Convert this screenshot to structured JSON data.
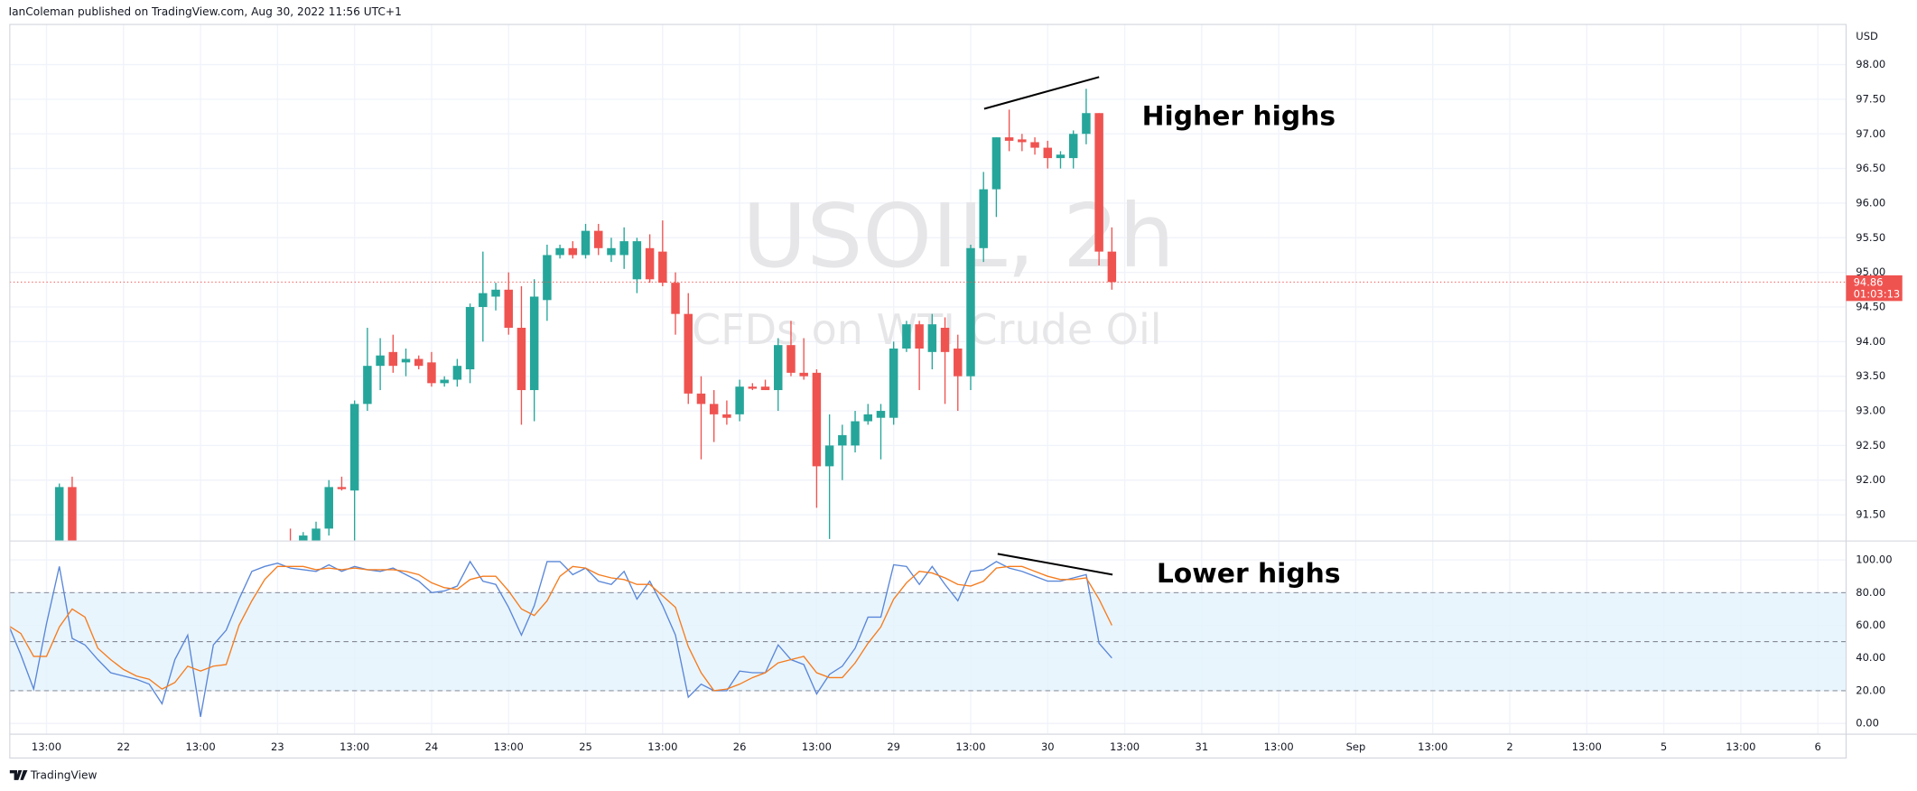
{
  "header": "IanColeman published on TradingView.com, Aug 30, 2022 11:56 UTC+1",
  "footer": "TradingView",
  "watermark": {
    "symbol": "USOIL, 2h",
    "description": "CFDs on WTI Crude Oil"
  },
  "annotations": [
    "Higher highs",
    "Lower highs"
  ],
  "chart_data": [
    {
      "type": "candlestick",
      "currency": "USD",
      "up_color": "#26a69a",
      "down_color": "#ef5350",
      "x": [
        1,
        2,
        19,
        20,
        21,
        22,
        23,
        24,
        25,
        26,
        27,
        28,
        29,
        30,
        31,
        32,
        33,
        34,
        35,
        36,
        37,
        38,
        39,
        40,
        41,
        42,
        43,
        44,
        45,
        46,
        47,
        48,
        49,
        50,
        51,
        52,
        53,
        54,
        55,
        56,
        57,
        58,
        59,
        60,
        61,
        62,
        63,
        64,
        65,
        66,
        67,
        68,
        69,
        70,
        71,
        72,
        73,
        74,
        75,
        76,
        77,
        78,
        79,
        80,
        81,
        82,
        83
      ],
      "open": [
        91.1,
        91.9,
        91.1,
        91.0,
        91.1,
        91.3,
        91.9,
        91.85,
        93.1,
        93.65,
        93.85,
        93.7,
        93.75,
        93.7,
        93.4,
        93.45,
        93.6,
        94.5,
        94.65,
        94.75,
        94.2,
        93.3,
        94.6,
        95.25,
        95.35,
        95.25,
        95.6,
        95.25,
        95.25,
        94.9,
        95.35,
        95.3,
        94.85,
        94.4,
        93.25,
        93.1,
        92.95,
        92.95,
        93.35,
        93.35,
        93.3,
        93.95,
        93.55,
        93.55,
        92.2,
        92.5,
        92.5,
        92.85,
        92.9,
        92.9,
        93.9,
        94.25,
        93.85,
        94.2,
        93.9,
        93.5,
        95.35,
        96.2,
        96.95,
        96.92,
        96.88,
        96.8,
        96.65,
        96.65,
        97.0,
        97.3,
        95.3
      ],
      "high": [
        91.95,
        92.05,
        91.3,
        91.25,
        91.4,
        92.0,
        92.05,
        93.15,
        94.2,
        94.05,
        94.1,
        93.9,
        93.8,
        93.85,
        93.5,
        93.75,
        94.55,
        95.3,
        94.85,
        95.0,
        94.8,
        94.9,
        95.4,
        95.4,
        95.45,
        95.7,
        95.7,
        95.5,
        95.65,
        95.5,
        95.55,
        95.75,
        95.0,
        94.7,
        93.5,
        93.3,
        93.15,
        93.45,
        93.4,
        93.45,
        94.05,
        94.3,
        94.05,
        93.6,
        92.95,
        92.8,
        93.0,
        93.1,
        93.1,
        94.0,
        94.3,
        94.3,
        94.4,
        94.35,
        94.1,
        95.4,
        96.45,
        96.95,
        97.35,
        97.0,
        96.95,
        96.9,
        96.75,
        97.05,
        97.65,
        97.3,
        95.65
      ],
      "low": [
        90.9,
        90.9,
        90.9,
        90.9,
        91.0,
        91.2,
        91.85,
        91.1,
        93.0,
        93.3,
        93.55,
        93.5,
        93.6,
        93.35,
        93.35,
        93.35,
        93.4,
        94.0,
        94.45,
        94.1,
        92.8,
        92.85,
        94.3,
        95.2,
        95.2,
        95.2,
        95.25,
        95.15,
        95.05,
        94.7,
        94.85,
        94.8,
        94.1,
        93.1,
        92.3,
        92.55,
        92.8,
        92.85,
        93.3,
        93.3,
        93.0,
        93.5,
        93.45,
        91.6,
        91.15,
        92.0,
        92.4,
        92.8,
        92.3,
        92.8,
        93.85,
        93.3,
        93.6,
        93.1,
        93.0,
        93.3,
        95.15,
        95.8,
        96.75,
        96.75,
        96.7,
        96.5,
        96.5,
        96.5,
        96.85,
        95.1,
        94.75
      ],
      "close": [
        91.9,
        91.1,
        91.05,
        91.2,
        91.3,
        91.9,
        91.87,
        93.1,
        93.65,
        93.8,
        93.65,
        93.75,
        93.65,
        93.4,
        93.45,
        93.65,
        94.5,
        94.7,
        94.75,
        94.2,
        93.3,
        94.65,
        95.25,
        95.35,
        95.25,
        95.6,
        95.35,
        95.35,
        95.45,
        95.45,
        94.9,
        94.85,
        94.4,
        93.25,
        93.1,
        92.95,
        92.9,
        93.35,
        93.32,
        93.3,
        93.95,
        93.55,
        93.5,
        92.2,
        92.5,
        92.65,
        92.85,
        92.95,
        93.0,
        93.9,
        94.25,
        93.9,
        94.25,
        93.85,
        93.5,
        95.35,
        96.2,
        96.95,
        96.9,
        96.88,
        96.8,
        96.65,
        96.7,
        97.0,
        97.3,
        95.3,
        94.86
      ],
      "last_price": 94.86,
      "countdown": "01:03:13",
      "last_price_color": "#ef5350",
      "xlim": [
        -2.86,
        140.2
      ],
      "xticks": [
        {
          "value": 0,
          "label": "13:00"
        },
        {
          "value": 6,
          "label": "22"
        },
        {
          "value": 12,
          "label": "13:00"
        },
        {
          "value": 18,
          "label": "23"
        },
        {
          "value": 24,
          "label": "13:00"
        },
        {
          "value": 30,
          "label": "24"
        },
        {
          "value": 36,
          "label": "13:00"
        },
        {
          "value": 42,
          "label": "25"
        },
        {
          "value": 48,
          "label": "13:00"
        },
        {
          "value": 54,
          "label": "26"
        },
        {
          "value": 60,
          "label": "13:00"
        },
        {
          "value": 66,
          "label": "29"
        },
        {
          "value": 72,
          "label": "13:00"
        },
        {
          "value": 78,
          "label": "30"
        },
        {
          "value": 84,
          "label": "13:00"
        },
        {
          "value": 90,
          "label": "31"
        },
        {
          "value": 96,
          "label": "13:00"
        },
        {
          "value": 102,
          "label": "Sep"
        },
        {
          "value": 108,
          "label": "13:00"
        },
        {
          "value": 114,
          "label": "2"
        },
        {
          "value": 120,
          "label": "13:00"
        },
        {
          "value": 126,
          "label": "5"
        },
        {
          "value": 132,
          "label": "13:00"
        },
        {
          "value": 138,
          "label": "6"
        }
      ],
      "ylim": [
        91.13,
        98.58
      ],
      "yticks": [
        {
          "value": 91.5,
          "label": "91.50"
        },
        {
          "value": 92,
          "label": "92.00"
        },
        {
          "value": 92.5,
          "label": "92.50"
        },
        {
          "value": 93,
          "label": "93.00"
        },
        {
          "value": 93.5,
          "label": "93.50"
        },
        {
          "value": 94,
          "label": "94.00"
        },
        {
          "value": 94.5,
          "label": "94.50"
        },
        {
          "value": 95,
          "label": "95.00"
        },
        {
          "value": 95.5,
          "label": "95.50"
        },
        {
          "value": 96,
          "label": "96.00"
        },
        {
          "value": 96.5,
          "label": "96.50"
        },
        {
          "value": 97,
          "label": "97.00"
        },
        {
          "value": 97.5,
          "label": "97.50"
        },
        {
          "value": 98,
          "label": "98.00"
        }
      ],
      "grid": true
    },
    {
      "type": "line",
      "x": [
        -3,
        -2,
        -1,
        0,
        1,
        2,
        3,
        4,
        5,
        6,
        7,
        8,
        9,
        10,
        11,
        12,
        13,
        14,
        15,
        16,
        17,
        18,
        19,
        20,
        21,
        22,
        23,
        24,
        25,
        26,
        27,
        28,
        29,
        30,
        31,
        32,
        33,
        34,
        35,
        36,
        37,
        38,
        39,
        40,
        41,
        42,
        43,
        44,
        45,
        46,
        47,
        48,
        49,
        50,
        51,
        52,
        53,
        54,
        55,
        56,
        57,
        58,
        59,
        60,
        61,
        62,
        63,
        64,
        65,
        66,
        67,
        68,
        69,
        70,
        71,
        72,
        73,
        74,
        75,
        76,
        77,
        78,
        79,
        80,
        81,
        82,
        83
      ],
      "series": [
        {
          "color": "#5a87d8",
          "values": [
            61,
            42,
            21,
            61,
            96,
            52,
            48,
            39,
            31,
            29,
            27,
            24,
            12,
            39,
            54,
            4,
            48,
            57,
            76,
            93,
            96,
            98,
            95,
            94,
            93,
            97,
            93,
            96,
            94,
            93,
            95,
            91,
            87,
            80,
            81,
            84,
            99,
            87,
            85,
            71,
            54,
            72,
            99,
            99,
            91,
            95,
            87,
            85,
            93,
            76,
            87,
            72,
            54,
            16,
            24,
            20,
            20,
            32,
            31,
            31,
            48,
            39,
            36,
            18,
            30,
            35,
            46,
            65,
            65,
            97,
            96,
            85,
            96,
            85,
            75,
            93,
            94,
            99,
            95,
            93,
            90,
            87,
            87,
            89,
            91,
            49,
            40
          ]
        },
        {
          "color": "#f57c1f",
          "values": [
            60,
            55,
            41,
            41,
            59,
            70,
            65,
            46,
            39,
            33,
            29,
            27,
            21,
            25,
            35,
            32,
            35,
            36,
            60,
            75,
            88,
            96,
            96,
            96,
            94,
            95,
            94,
            95,
            94,
            94,
            94,
            93,
            91,
            86,
            83,
            82,
            88,
            90,
            90,
            81,
            70,
            66,
            75,
            90,
            96,
            95,
            91,
            89,
            88,
            85,
            85,
            78,
            71,
            47,
            31,
            20,
            21,
            24,
            28,
            31,
            37,
            39,
            41,
            31,
            28,
            28,
            37,
            49,
            59,
            76,
            86,
            93,
            92,
            89,
            85,
            84,
            87,
            95,
            96,
            96,
            93,
            90,
            88,
            88,
            89,
            76,
            60
          ]
        }
      ],
      "xlim": [
        -2.86,
        140.2
      ],
      "ylim": [
        -6.2,
        111.2
      ],
      "yticks": [
        {
          "value": 0,
          "label": "0.00"
        },
        {
          "value": 20,
          "label": "20.00"
        },
        {
          "value": 40,
          "label": "40.00"
        },
        {
          "value": 60,
          "label": "60.00"
        },
        {
          "value": 80,
          "label": "80.00"
        },
        {
          "value": 100,
          "label": "100.00"
        }
      ],
      "levels": [
        20,
        50,
        80
      ],
      "band": [
        20,
        80
      ],
      "band_color": "#e3f2fd",
      "grid": true
    }
  ]
}
